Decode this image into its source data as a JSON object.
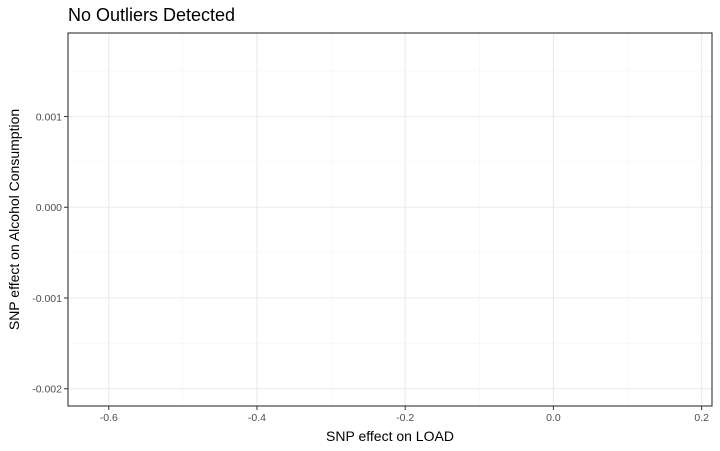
{
  "chart_data": {
    "type": "scatter",
    "title": "No Outliers Detected",
    "xlabel": "SNP effect on LOAD",
    "ylabel": "SNP effect on Alcohol Consumption",
    "xlim": [
      -0.655,
      0.214
    ],
    "ylim": [
      -0.00219,
      0.00192
    ],
    "x_ticks": [
      -0.6,
      -0.4,
      -0.2,
      0.0,
      0.2
    ],
    "x_tick_labels": [
      "-0.6",
      "-0.4",
      "-0.2",
      "0.0",
      "0.2"
    ],
    "y_ticks": [
      0.001,
      0.0,
      -0.001,
      -0.002
    ],
    "y_tick_labels": [
      "0.001",
      "0.000",
      "-0.001",
      "-0.002"
    ],
    "x_minor_ticks": [
      -0.5,
      -0.3,
      -0.1,
      0.1
    ],
    "y_minor_ticks": [
      0.0015,
      0.0005,
      -0.0005,
      -0.0015
    ],
    "grid": true,
    "points": [],
    "colors": {
      "panel_border": "#333333",
      "grid_major": "#ebebeb",
      "grid_minor": "#f5f5f5",
      "tick_text": "#4d4d4d",
      "background": "#ffffff"
    }
  }
}
